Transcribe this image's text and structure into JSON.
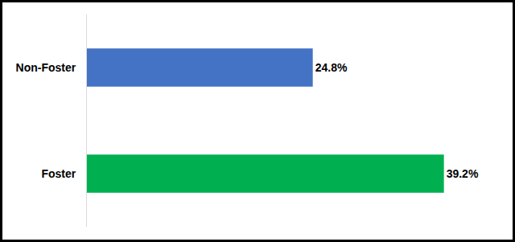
{
  "chart_data": {
    "type": "bar",
    "orientation": "horizontal",
    "categories": [
      "Non-Foster",
      "Foster"
    ],
    "values": [
      24.8,
      39.2
    ],
    "value_labels": [
      "24.8%",
      "39.2%"
    ],
    "colors": [
      "#4472c4",
      "#00b050"
    ],
    "data_labels": true,
    "tick_labels": "y",
    "grid": false
  }
}
